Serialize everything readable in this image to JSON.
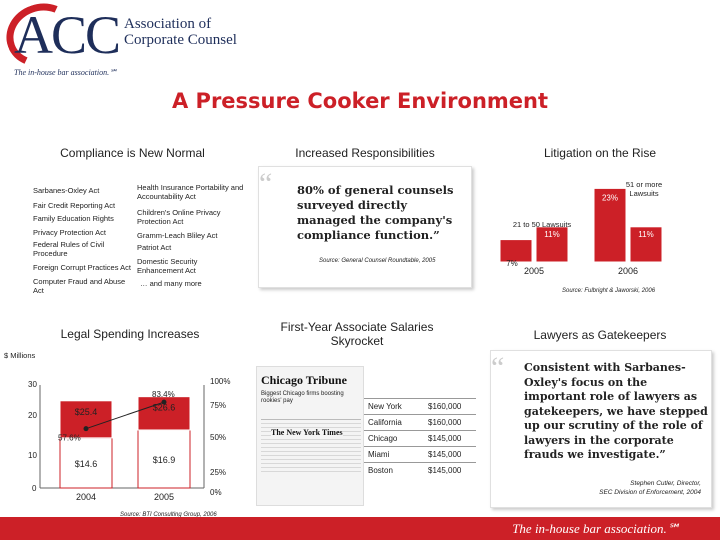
{
  "header": {
    "logo_text": "ACC",
    "org_name_line1": "Association of",
    "org_name_line2": "Corporate Counsel",
    "tagline": "The in-house bar association.℠",
    "title": "A Pressure Cooker Environment"
  },
  "compliance": {
    "heading": "Compliance is New Normal",
    "left_items": [
      "Sarbanes-Oxley Act",
      "Fair Credit Reporting Act",
      "Family Education Rights",
      "Privacy Protection Act",
      "Federal Rules of Civil Procedure",
      "Foreign Corrupt Practices Act",
      "Computer Fraud and Abuse Act"
    ],
    "right_items": [
      "Health Insurance Portability and Accountability Act",
      "Children's Online Privacy Protection Act",
      "Gramm-Leach Bliley Act",
      "Patriot Act",
      "Domestic Security Enhancement Act",
      "… and many more"
    ]
  },
  "responsibilities": {
    "heading": "Increased Responsibilities",
    "quote": "80% of general counsels surveyed directly managed the company's compliance function.”",
    "source": "Source: General Counsel Roundtable, 2005"
  },
  "litigation": {
    "heading": "Litigation on the Rise",
    "label_51": "51 or more Lawsuits",
    "label_21": "21 to 50 Lawsuits",
    "source": "Source: Fulbright & Jaworski, 2006"
  },
  "spending": {
    "heading": "Legal Spending Increases",
    "units": "$ Millions",
    "y_ticks": [
      "30",
      "20",
      "10",
      "0"
    ],
    "pct_ticks": [
      "100%",
      "75%",
      "50%",
      "25%",
      "0%"
    ],
    "source": "Source: BTI Consulting Group, 2006"
  },
  "salaries": {
    "heading": "First-Year Associate Salaries Skyrocket",
    "newspaper1": "Chicago Tribune",
    "headline1": "Biggest Chicago firms boosting rookies' pay",
    "newspaper2": "The New York Times",
    "rows": [
      {
        "city": "New York",
        "salary": "$160,000"
      },
      {
        "city": "California",
        "salary": "$160,000"
      },
      {
        "city": "Chicago",
        "salary": "$145,000"
      },
      {
        "city": "Miami",
        "salary": "$145,000"
      },
      {
        "city": "Boston",
        "salary": "$145,000"
      }
    ]
  },
  "gatekeepers": {
    "heading": "Lawyers as Gatekeepers",
    "quote": "Consistent with Sarbanes-Oxley's focus on the important role of lawyers as gatekeepers, we have stepped up our scrutiny of the role of lawyers in the corporate frauds we investigate.”",
    "attribution1": "Stephen Cutler, Director,",
    "attribution2": "SEC Division of Enforcement, 2004"
  },
  "footer": {
    "tagline": "The in-house bar association.℠"
  },
  "chart_data": [
    {
      "type": "bar",
      "categories": [
        "2005",
        "2006"
      ],
      "series": [
        {
          "name": "51 or more Lawsuits",
          "values": [
            7,
            23
          ],
          "labels": [
            "7%",
            "23%"
          ]
        },
        {
          "name": "21 to 50 Lawsuits",
          "values": [
            11,
            11
          ],
          "labels": [
            "11%",
            "11%"
          ]
        }
      ],
      "ylim": [
        0,
        25
      ]
    },
    {
      "type": "bar",
      "categories": [
        "2004",
        "2005"
      ],
      "series": [
        {
          "values": [
            14.6,
            16.9
          ],
          "labels": [
            "$14.6",
            "$16.9"
          ]
        },
        {
          "values": [
            25.4,
            26.6
          ],
          "labels": [
            "$25.4",
            "$26.6"
          ]
        },
        {
          "type": "line",
          "values": [
            57.6,
            83.4
          ],
          "labels": [
            "57.6%",
            "83.4%"
          ],
          "ylim": [
            0,
            100
          ]
        }
      ],
      "ylim": [
        0,
        30
      ],
      "ylabel": "$ Millions"
    }
  ],
  "colors": {
    "accent": "#cc2027",
    "navy": "#1e2e5a"
  }
}
